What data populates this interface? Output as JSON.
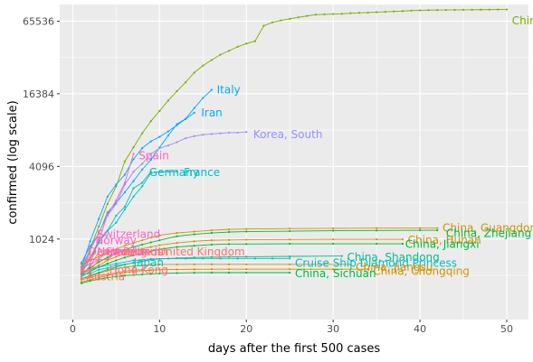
{
  "chart_data": {
    "type": "line",
    "title": "",
    "xlabel": "days after the first  500  cases",
    "ylabel": "confirmed  (log scale)",
    "xlim": [
      -1.5,
      52.5
    ],
    "ylim": [
      220,
      90000
    ],
    "y_scale": "log",
    "x_ticks": [
      0,
      10,
      20,
      30,
      40,
      50
    ],
    "x_tick_labels": [
      "0",
      "10",
      "20",
      "30",
      "40",
      "50"
    ],
    "y_ticks": [
      1024,
      4096,
      16384,
      65536
    ],
    "y_tick_labels": [
      "1024",
      "4096",
      "16384",
      "65536"
    ],
    "grid": true,
    "legend": "none",
    "series": [
      {
        "name": "China",
        "color": "#7CAE00",
        "label_x": 50.6,
        "label_y": 66000,
        "x": [
          1,
          2,
          3,
          4,
          5,
          6,
          7,
          8,
          9,
          10,
          11,
          12,
          13,
          14,
          15,
          16,
          17,
          18,
          19,
          20,
          21,
          22,
          23,
          24,
          25,
          26,
          27,
          28,
          29,
          30,
          31,
          32,
          33,
          34,
          35,
          36,
          37,
          38,
          39,
          40,
          41,
          42,
          43,
          44,
          45,
          46,
          47,
          48,
          49,
          50
        ],
        "y": [
          550,
          850,
          1300,
          2000,
          2800,
          4500,
          5900,
          7700,
          9700,
          11800,
          14400,
          17200,
          20400,
          24500,
          28000,
          31200,
          34500,
          37200,
          40200,
          42700,
          44700,
          59900,
          64000,
          66500,
          68500,
          70500,
          72400,
          74200,
          74600,
          75000,
          75400,
          76200,
          76800,
          77100,
          77800,
          78300,
          78900,
          79400,
          80100,
          80500,
          80800,
          81000,
          81100,
          81200,
          81300,
          81400,
          81500,
          81600,
          81700,
          81800
        ]
      },
      {
        "name": "Italy",
        "color": "#00A9FF",
        "label_x": 16.6,
        "label_y": 17600,
        "x": [
          1,
          2,
          3,
          4,
          5,
          6,
          7,
          8,
          9,
          10,
          11,
          12,
          13,
          14,
          15,
          16
        ],
        "y": [
          650,
          890,
          1130,
          1700,
          2040,
          2500,
          3090,
          3860,
          4640,
          5880,
          7380,
          9170,
          10150,
          12460,
          15110,
          17660
        ]
      },
      {
        "name": "Iran",
        "color": "#00A9FF",
        "label_x": 14.8,
        "label_y": 11400,
        "x": [
          1,
          2,
          3,
          4,
          5,
          6,
          7,
          8,
          9,
          10,
          11,
          12,
          13,
          14
        ],
        "y": [
          590,
          980,
          1500,
          2300,
          2900,
          3500,
          4700,
          5800,
          6600,
          7200,
          8000,
          9000,
          10100,
          11400
        ]
      },
      {
        "name": "Korea, South",
        "color": "#9590FF",
        "label_x": 20.8,
        "label_y": 7500,
        "x": [
          1,
          2,
          3,
          4,
          5,
          6,
          7,
          8,
          9,
          10,
          11,
          12,
          13,
          14,
          15,
          16,
          17,
          18,
          19,
          20
        ],
        "y": [
          600,
          830,
          1150,
          1600,
          2000,
          2900,
          3700,
          4300,
          5200,
          5800,
          6100,
          6500,
          7000,
          7300,
          7500,
          7600,
          7700,
          7800,
          7800,
          7900
        ]
      },
      {
        "name": "Spain",
        "color": "#FF61C3",
        "label_x": 7.6,
        "label_y": 5000,
        "x": [
          1,
          2,
          3,
          4,
          5,
          6,
          7
        ],
        "y": [
          580,
          640,
          1000,
          1620,
          2140,
          3000,
          5200
        ]
      },
      {
        "name": "Germany",
        "color": "#00BFC4",
        "label_x": 8.8,
        "label_y": 3650,
        "x": [
          1,
          2,
          3,
          4,
          5,
          6,
          7,
          8,
          9
        ],
        "y": [
          530,
          700,
          1000,
          1200,
          1600,
          1900,
          2700,
          3000,
          3700
        ]
      },
      {
        "name": "France",
        "color": "#00BFC4",
        "label_x": 12.8,
        "label_y": 3650,
        "x": [
          1,
          2,
          3,
          4,
          5,
          6,
          7,
          8,
          9,
          10,
          11,
          12
        ],
        "y": [
          600,
          700,
          950,
          1200,
          1400,
          1800,
          2300,
          2800,
          3600,
          3700,
          3700,
          3700
        ]
      },
      {
        "name": "China, Guangdong",
        "color": "#D39200",
        "label_x": 42.6,
        "label_y": 1260,
        "x": [
          1,
          2,
          3,
          4,
          5,
          6,
          7,
          8,
          9,
          10,
          12,
          14,
          16,
          18,
          20,
          25,
          30,
          35,
          40,
          42
        ],
        "y": [
          630,
          680,
          730,
          780,
          840,
          900,
          950,
          1000,
          1050,
          1100,
          1150,
          1180,
          1210,
          1230,
          1240,
          1250,
          1255,
          1260,
          1260,
          1260
        ]
      },
      {
        "name": "China, Zhejiang",
        "color": "#00BA38",
        "label_x": 43.0,
        "label_y": 1140,
        "x": [
          1,
          2,
          3,
          4,
          5,
          6,
          7,
          8,
          9,
          10,
          12,
          14,
          16,
          18,
          20,
          25,
          30,
          35,
          40,
          42
        ],
        "y": [
          530,
          590,
          660,
          720,
          780,
          830,
          880,
          920,
          960,
          1000,
          1080,
          1120,
          1150,
          1170,
          1180,
          1190,
          1200,
          1205,
          1210,
          1210
        ]
      },
      {
        "name": "China, Hunan",
        "color": "#D39200",
        "label_x": 38.6,
        "label_y": 1000,
        "x": [
          1,
          2,
          3,
          4,
          5,
          6,
          7,
          8,
          9,
          10,
          12,
          14,
          16,
          18,
          20,
          25,
          30,
          35,
          38
        ],
        "y": [
          520,
          570,
          620,
          680,
          730,
          770,
          810,
          850,
          880,
          910,
          950,
          980,
          1000,
          1005,
          1010,
          1015,
          1018,
          1018,
          1018
        ]
      },
      {
        "name": "China, Jiangxi",
        "color": "#00BA38",
        "label_x": 38.3,
        "label_y": 930,
        "x": [
          1,
          2,
          3,
          4,
          5,
          6,
          7,
          8,
          9,
          10,
          12,
          14,
          16,
          18,
          20,
          25,
          30,
          35,
          38
        ],
        "y": [
          500,
          550,
          600,
          640,
          680,
          720,
          750,
          780,
          810,
          840,
          880,
          900,
          920,
          930,
          930,
          935,
          935,
          935,
          935
        ]
      },
      {
        "name": "China, Shandong",
        "color": "#00C08B",
        "label_x": 31.6,
        "label_y": 720,
        "x": [
          1,
          2,
          3,
          4,
          5,
          6,
          7,
          8,
          9,
          10,
          12,
          14,
          16,
          18,
          20,
          25,
          31
        ],
        "y": [
          480,
          510,
          540,
          570,
          600,
          630,
          650,
          670,
          690,
          700,
          710,
          720,
          725,
          728,
          730,
          735,
          740
        ]
      },
      {
        "name": "Cruise Ship Diamond Princess",
        "color": "#00BFC4",
        "label_x": 25.6,
        "label_y": 645,
        "x": [
          1,
          3,
          5,
          7,
          9,
          11,
          13,
          15,
          17,
          19,
          21,
          23,
          25
        ],
        "y": [
          540,
          600,
          640,
          680,
          700,
          705,
          705,
          706,
          706,
          706,
          706,
          706,
          706
        ]
      },
      {
        "name": "China, Jiangsu",
        "color": "#D39200",
        "label_x": 32.6,
        "label_y": 600,
        "x": [
          1,
          2,
          3,
          4,
          5,
          6,
          7,
          8,
          9,
          10,
          12,
          14,
          16,
          18,
          20,
          25,
          32
        ],
        "y": [
          480,
          500,
          530,
          560,
          580,
          600,
          610,
          620,
          625,
          630,
          630,
          631,
          631,
          631,
          631,
          631,
          631
        ]
      },
      {
        "name": "China, Chongqing",
        "color": "#D39200",
        "label_x": 34.6,
        "label_y": 555,
        "x": [
          1,
          2,
          3,
          4,
          5,
          6,
          7,
          8,
          9,
          10,
          12,
          14,
          16,
          18,
          20,
          25,
          30,
          34
        ],
        "y": [
          450,
          470,
          490,
          510,
          525,
          540,
          550,
          560,
          565,
          570,
          573,
          575,
          576,
          576,
          576,
          576,
          576,
          576
        ]
      },
      {
        "name": "China, Sichuan",
        "color": "#00BA38",
        "label_x": 25.6,
        "label_y": 530,
        "x": [
          1,
          2,
          3,
          4,
          5,
          6,
          7,
          8,
          9,
          10,
          12,
          14,
          16,
          18,
          20,
          25
        ],
        "y": [
          440,
          460,
          475,
          490,
          500,
          510,
          515,
          520,
          525,
          530,
          535,
          538,
          539,
          539,
          539,
          539
        ]
      },
      {
        "name": "Switzerland",
        "color": "#FF61C3",
        "label_x": 2.8,
        "label_y": 1125,
        "x": [
          1,
          2,
          3
        ],
        "y": [
          530,
          860,
          1125
        ]
      },
      {
        "name": "Norway",
        "color": "#FF61C3",
        "label_x": 2.6,
        "label_y": 990,
        "x": [
          1,
          2,
          3
        ],
        "y": [
          580,
          720,
          990
        ]
      },
      {
        "name": "United Kingdom",
        "color": "#F8766D",
        "label_x": 9.8,
        "label_y": 800,
        "x": [
          1,
          2,
          3,
          4,
          5,
          6,
          7,
          8,
          9
        ],
        "y": [
          590,
          690,
          690,
          690,
          800,
          800,
          800,
          800,
          800
        ]
      },
      {
        "name": "Denmark",
        "color": "#F8766D",
        "label_x": 1.8,
        "label_y": 800,
        "x": [
          1,
          2
        ],
        "y": [
          520,
          800
        ]
      },
      {
        "name": "Netherlands",
        "color": "#FF61C3",
        "label_x": 2.8,
        "label_y": 800,
        "x": [
          1,
          2,
          3
        ],
        "y": [
          500,
          610,
          800
        ]
      },
      {
        "name": "Sweden",
        "color": "#FF61C3",
        "label_x": 3.8,
        "label_y": 800,
        "x": [
          1,
          2,
          3,
          4
        ],
        "y": [
          500,
          620,
          700,
          800
        ]
      },
      {
        "name": "Belgium",
        "color": "#F8766D",
        "label_x": 5.8,
        "label_y": 800,
        "x": [
          1,
          2,
          3,
          4,
          5,
          6
        ],
        "y": [
          560,
          560,
          690,
          690,
          800,
          800
        ]
      },
      {
        "name": "Japan",
        "color": "#00BFC4",
        "label_x": 7.0,
        "label_y": 650,
        "x": [
          1,
          2,
          3,
          4,
          5,
          6,
          7
        ],
        "y": [
          520,
          530,
          570,
          590,
          620,
          630,
          650
        ]
      },
      {
        "name": "Hong Kong",
        "color": "#F8766D",
        "label_x": 4.2,
        "label_y": 570,
        "x": [
          1,
          2,
          3,
          4,
          5,
          6,
          7,
          8
        ],
        "y": [
          470,
          490,
          510,
          520,
          540,
          555,
          565,
          570
        ]
      },
      {
        "name": "Austria",
        "color": "#F8766D",
        "label_x": 1.6,
        "label_y": 500,
        "x": [
          1
        ],
        "y": [
          500
        ]
      }
    ]
  }
}
